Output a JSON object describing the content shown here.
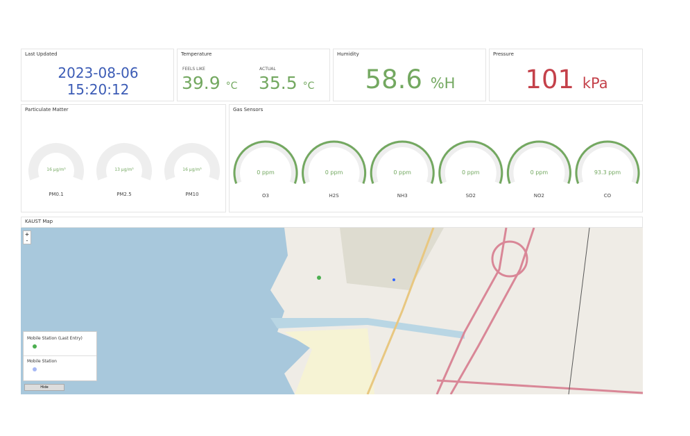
{
  "last_updated": {
    "title": "Last Updated",
    "date": "2023-08-06",
    "time": "15:20:12"
  },
  "temperature": {
    "title": "Temperature",
    "feels_like": {
      "label": "FEELS LIKE",
      "value": "39.9",
      "unit": "°C"
    },
    "actual": {
      "label": "ACTUAL",
      "value": "35.5",
      "unit": "°C"
    }
  },
  "humidity": {
    "title": "Humidity",
    "value": "58.6",
    "unit": "%H"
  },
  "pressure": {
    "title": "Pressure",
    "value": "101",
    "unit": "kPa"
  },
  "particulate_matter": {
    "title": "Particulate Matter",
    "gauges": [
      {
        "label": "PM0.1",
        "value_label": "16 µg/m³"
      },
      {
        "label": "PM2.5",
        "value_label": "13 µg/m³"
      },
      {
        "label": "PM10",
        "value_label": "16 µg/m³"
      }
    ]
  },
  "gas_sensors": {
    "title": "Gas Sensors",
    "gauges": [
      {
        "label": "O3",
        "value_label": "0 ppm"
      },
      {
        "label": "H2S",
        "value_label": "0 ppm"
      },
      {
        "label": "NH3",
        "value_label": "0 ppm"
      },
      {
        "label": "SO2",
        "value_label": "0 ppm"
      },
      {
        "label": "NO2",
        "value_label": "0 ppm"
      },
      {
        "label": "CO",
        "value_label": "93.3 ppm"
      }
    ]
  },
  "map": {
    "title": "KAUST Map",
    "zoom_in": "+",
    "zoom_out": "-",
    "legend": [
      "Mobile Station (Last Entry)",
      "Mobile Station"
    ],
    "button": "Hide"
  }
}
